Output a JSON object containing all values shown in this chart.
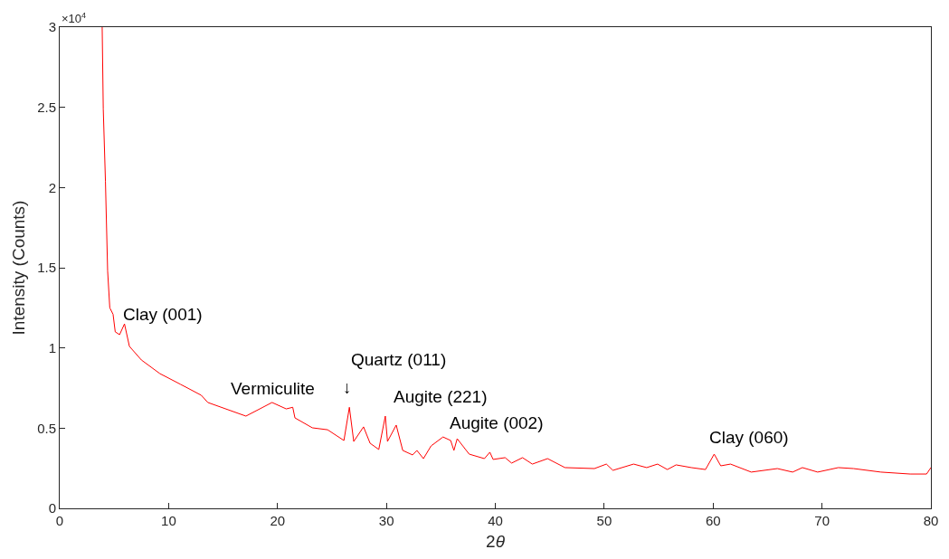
{
  "chart_data": {
    "type": "line",
    "xlabel": "2θ",
    "ylabel": "Intensity (Counts)",
    "xlim": [
      0,
      80
    ],
    "xticks": [
      0,
      10,
      20,
      30,
      40,
      50,
      60,
      70,
      80
    ],
    "ylim": [
      0,
      3
    ],
    "yticks": [
      0,
      0.5,
      1,
      1.5,
      2,
      2.5,
      3
    ],
    "marker": "none",
    "line_style": "solid",
    "annotations": [
      "×10$^{4}$",
      {
        "text": "Clay (001)",
        "x": 5.95,
        "y": 1.15
      },
      {
        "text": "Vermiculite",
        "x": 19.5,
        "y": 0.66
      },
      {
        "text": "Quartz (011)",
        "x": 26.6,
        "y": 0.63
      },
      {
        "text": "↓",
        "x": 26.6,
        "y": 0.63
      },
      {
        "text": "Augite (221)",
        "x": 29.9,
        "y": 0.575
      },
      {
        "text": "Augite (002)",
        "x": 36.5,
        "y": 0.434
      },
      {
        "text": "Clay (060)",
        "x": 60.1,
        "y": 0.338
      }
    ],
    "series": [
      {
        "color": "#ff0000",
        "x": [
          3.9,
          4.0,
          4.2,
          4.4,
          4.6,
          4.9,
          5.1,
          5.5,
          5.95,
          6.4,
          7.5,
          9.2,
          11.1,
          13.0,
          13.6,
          17.1,
          19.5,
          20.8,
          21.4,
          21.6,
          23.2,
          24.6,
          26.1,
          26.6,
          27.0,
          27.9,
          28.5,
          29.3,
          29.9,
          30.1,
          30.9,
          31.5,
          32.4,
          32.8,
          33.4,
          34.1,
          35.2,
          35.9,
          36.2,
          36.5,
          37.6,
          39.0,
          39.5,
          39.8,
          40.9,
          41.5,
          42.5,
          43.4,
          44.8,
          46.4,
          49.1,
          50.2,
          50.8,
          52.7,
          53.9,
          54.9,
          55.8,
          56.6,
          58.0,
          59.3,
          60.1,
          60.7,
          61.6,
          63.5,
          65.9,
          67.3,
          68.2,
          69.6,
          71.5,
          72.9,
          75.4,
          78.1,
          79.6,
          80
        ],
        "values": [
          3.0,
          2.49,
          2.04,
          1.48,
          1.25,
          1.21,
          1.1,
          1.083,
          1.15,
          1.01,
          0.925,
          0.84,
          0.773,
          0.705,
          0.66,
          0.575,
          0.66,
          0.62,
          0.63,
          0.564,
          0.502,
          0.49,
          0.423,
          0.63,
          0.417,
          0.508,
          0.406,
          0.367,
          0.575,
          0.417,
          0.519,
          0.361,
          0.333,
          0.361,
          0.31,
          0.389,
          0.445,
          0.423,
          0.361,
          0.434,
          0.338,
          0.31,
          0.35,
          0.305,
          0.316,
          0.282,
          0.316,
          0.276,
          0.31,
          0.254,
          0.248,
          0.276,
          0.237,
          0.276,
          0.254,
          0.276,
          0.242,
          0.271,
          0.254,
          0.242,
          0.338,
          0.265,
          0.276,
          0.226,
          0.248,
          0.226,
          0.254,
          0.226,
          0.254,
          0.248,
          0.226,
          0.214,
          0.214,
          0.254
        ]
      }
    ]
  }
}
